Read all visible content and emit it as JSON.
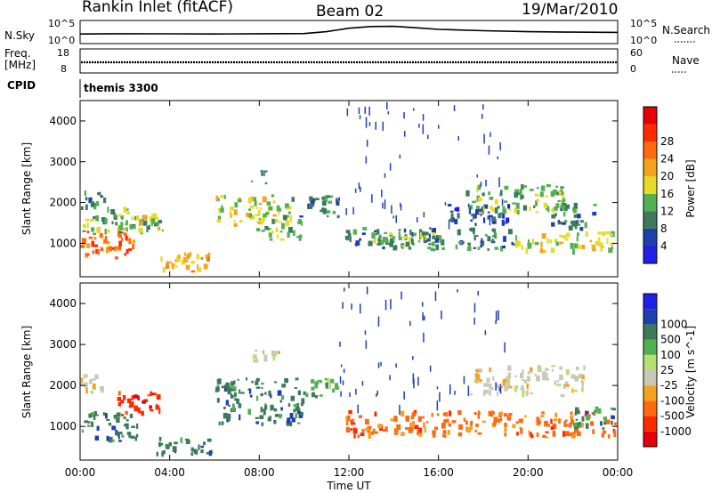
{
  "header": {
    "title": "Rankin Inlet (fitACF)",
    "beam": "Beam 02",
    "date": "19/Mar/2010"
  },
  "sky_panel": {
    "left_label": "N.Sky",
    "right_label": "N.Search",
    "left_ticks": [
      "10^5",
      "10^0"
    ],
    "right_ticks": [
      "10^5",
      "10^0"
    ]
  },
  "freq_panel": {
    "left_label_1": "Freq.",
    "left_label_2": "[MHz]",
    "right_label": "Nave",
    "left_ticks": [
      "18",
      "8"
    ],
    "right_ticks": [
      "60",
      "0"
    ]
  },
  "cpid_panel": {
    "left_label": "CPID",
    "program": "themis 3300"
  },
  "colors": {
    "power_bins": [
      "#1f1fe6",
      "#1f3faa",
      "#3c7a5c",
      "#52b052",
      "#e6dc28",
      "#f5a31e",
      "#ff6a10",
      "#ff2a00",
      "#e6000a"
    ],
    "velocity_bins": [
      "#1f1fe6",
      "#1f3faa",
      "#3c7a5c",
      "#52b052",
      "#b8e070",
      "#c8c8b8",
      "#f5a31e",
      "#ff6a10",
      "#ff2a00",
      "#e6000a"
    ],
    "ground_scatter": "#c0c0c0"
  },
  "chart_data": [
    {
      "type": "line",
      "panel": "N.Sky / N.Search",
      "x_unit": "hours UT",
      "y_scale": "log",
      "ylim": [
        "10^0",
        "10^5"
      ],
      "x": [
        0,
        2,
        4,
        6,
        8,
        10,
        11,
        12,
        13,
        14,
        15,
        16,
        18,
        20,
        22,
        24
      ],
      "series": [
        {
          "name": "N.Sky",
          "values": [
            100,
            120,
            110,
            100,
            120,
            130,
            400,
            3000,
            8000,
            9000,
            4000,
            1500,
            700,
            400,
            300,
            250
          ]
        }
      ]
    },
    {
      "type": "line",
      "panel": "Freq. / Nave",
      "x_unit": "hours UT",
      "ylim": [
        8,
        18
      ],
      "x": [
        0,
        4,
        8,
        12,
        16,
        20,
        24
      ],
      "series": [
        {
          "name": "Freq.",
          "values": [
            10.5,
            10.5,
            10.5,
            10.5,
            10.5,
            10.5,
            10.5
          ]
        }
      ]
    },
    {
      "type": "heatmap",
      "panel": "Power",
      "xlabel": "Time UT",
      "ylabel": "Slant Range [km]",
      "colorbar_label": "Power [dB]",
      "colorbar_ticks": [
        4,
        8,
        12,
        16,
        20,
        24,
        28
      ],
      "xlim": [
        0,
        24
      ],
      "ylim": [
        180,
        4500
      ],
      "x_ticks": [
        "00:00",
        "04:00",
        "08:00",
        "12:00",
        "16:00",
        "20:00",
        "00:00"
      ],
      "y_ticks": [
        1000,
        2000,
        3000,
        4000
      ],
      "patches": [
        {
          "t0": 0.0,
          "t1": 2.6,
          "r0": 600,
          "r1": 1400,
          "db": 26
        },
        {
          "t0": 0.0,
          "t1": 3.8,
          "r0": 1200,
          "r1": 1700,
          "db": 16
        },
        {
          "t0": 0.0,
          "t1": 1.2,
          "r0": 1800,
          "r1": 2300,
          "db": 10
        },
        {
          "t0": 1.0,
          "t1": 2.4,
          "r0": 1400,
          "r1": 1900,
          "db": 14
        },
        {
          "t0": 2.5,
          "t1": 3.6,
          "r0": 1300,
          "r1": 1800,
          "db": 18
        },
        {
          "t0": 3.4,
          "t1": 6.0,
          "r0": 250,
          "r1": 800,
          "db": 22
        },
        {
          "t0": 6.0,
          "t1": 9.6,
          "r0": 1400,
          "r1": 2200,
          "db": 18
        },
        {
          "t0": 7.8,
          "t1": 10.0,
          "r0": 1000,
          "r1": 1700,
          "db": 14
        },
        {
          "t0": 7.6,
          "t1": 8.4,
          "r0": 2400,
          "r1": 2800,
          "db": 10
        },
        {
          "t0": 9.4,
          "t1": 11.6,
          "r0": 1600,
          "r1": 2200,
          "db": 12
        },
        {
          "t0": 11.8,
          "t1": 19.6,
          "r0": 800,
          "r1": 1400,
          "db": 10
        },
        {
          "t0": 13.0,
          "t1": 16.2,
          "r0": 900,
          "r1": 1300,
          "db": 16
        },
        {
          "t0": 16.4,
          "t1": 19.2,
          "r0": 1400,
          "r1": 2000,
          "db": 8
        },
        {
          "t0": 17.2,
          "t1": 21.8,
          "r0": 1700,
          "r1": 2500,
          "db": 16
        },
        {
          "t0": 19.4,
          "t1": 24.0,
          "r0": 700,
          "r1": 1300,
          "db": 20
        },
        {
          "t0": 21.0,
          "t1": 23.2,
          "r0": 1300,
          "r1": 2000,
          "db": 12
        }
      ]
    },
    {
      "type": "heatmap",
      "panel": "Velocity",
      "xlabel": "Time UT",
      "ylabel": "Slant Range [km]",
      "colorbar_label": "Velocity [m s^-1]",
      "colorbar_ticks": [
        1000,
        500,
        100,
        25,
        -25,
        -100,
        -500,
        -1000
      ],
      "xlim": [
        0,
        24
      ],
      "ylim": [
        180,
        4500
      ],
      "x_ticks": [
        "00:00",
        "04:00",
        "08:00",
        "12:00",
        "16:00",
        "20:00",
        "00:00"
      ],
      "y_ticks": [
        1000,
        2000,
        3000,
        4000
      ],
      "patches": [
        {
          "t0": 0.0,
          "t1": 2.6,
          "r0": 600,
          "r1": 1400,
          "v": 150
        },
        {
          "t0": 0.0,
          "t1": 1.2,
          "r0": 1800,
          "r1": 2300,
          "v": 0
        },
        {
          "t0": 1.6,
          "t1": 3.6,
          "r0": 1200,
          "r1": 1900,
          "v": -600
        },
        {
          "t0": 3.4,
          "t1": 6.0,
          "r0": 250,
          "r1": 800,
          "v": 200
        },
        {
          "t0": 6.0,
          "t1": 10.2,
          "r0": 1000,
          "r1": 2200,
          "v": 150
        },
        {
          "t0": 7.6,
          "t1": 9.0,
          "r0": 2500,
          "r1": 2900,
          "v": 0
        },
        {
          "t0": 10.2,
          "t1": 11.6,
          "r0": 1600,
          "r1": 2200,
          "v": 60
        },
        {
          "t0": 11.8,
          "t1": 19.6,
          "r0": 700,
          "r1": 1400,
          "v": -300
        },
        {
          "t0": 17.4,
          "t1": 22.6,
          "r0": 1700,
          "r1": 2500,
          "v": 0
        },
        {
          "t0": 19.4,
          "t1": 24.0,
          "r0": 700,
          "r1": 1400,
          "v": -200
        },
        {
          "t0": 22.0,
          "t1": 24.0,
          "r0": 900,
          "r1": 1500,
          "v": 150
        }
      ]
    }
  ]
}
